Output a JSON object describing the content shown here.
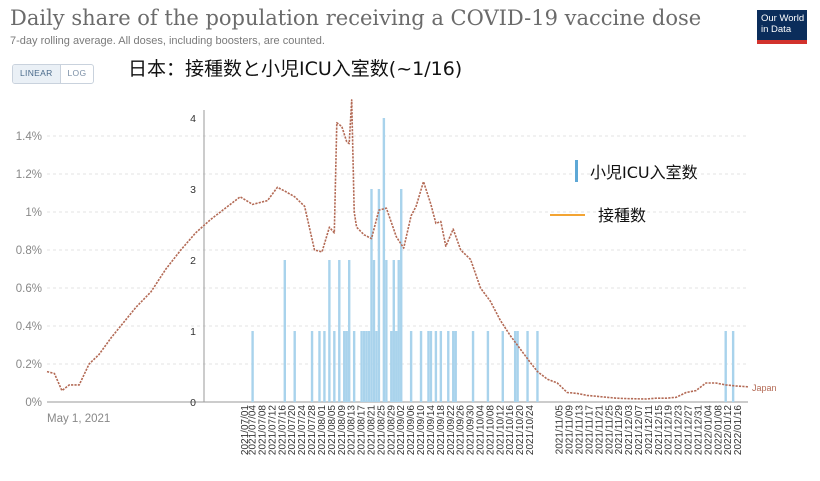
{
  "header": {
    "title": "Daily share of the population receiving a COVID-19 vaccine dose",
    "subtitle": "7-day rolling average. All doses, including boosters, are counted.",
    "logo_line1": "Our World",
    "logo_line2": "in Data"
  },
  "scale_toggle": {
    "linear_label": "LINEAR",
    "log_label": "LOG",
    "selected": "LINEAR"
  },
  "overlay_title": "日本：接種数と小児ICU入室数(~1/16)",
  "colors": {
    "line": "#b36a55",
    "bars": "#a9d3ec",
    "legend_bar": "#5ea8d6",
    "legend_line": "#f3a433"
  },
  "legend": {
    "bar_label": "小児ICU入室数",
    "line_label": "接種数"
  },
  "chart_data": [
    {
      "type": "line",
      "ylabel_ticks": [
        "0%",
        "0.2%",
        "0.4%",
        "0.6%",
        "0.8%",
        "1%",
        "1.2%",
        "1.4%"
      ],
      "ylim": [
        0,
        1.5
      ],
      "x_start_label": "May 1, 2021",
      "series": [
        {
          "name": "Japan",
          "x": [
            "2021-04-12",
            "2021-04-15",
            "2021-04-18",
            "2021-04-21",
            "2021-04-25",
            "2021-04-29",
            "2021-05-03",
            "2021-05-08",
            "2021-05-13",
            "2021-05-18",
            "2021-05-24",
            "2021-05-30",
            "2021-06-05",
            "2021-06-11",
            "2021-06-17",
            "2021-06-23",
            "2021-06-29",
            "2021-07-04",
            "2021-07-07",
            "2021-07-10",
            "2021-07-14",
            "2021-07-17",
            "2021-07-21",
            "2021-07-25",
            "2021-07-29",
            "2021-08-01",
            "2021-08-04",
            "2021-08-06",
            "2021-08-07",
            "2021-08-09",
            "2021-08-11",
            "2021-08-12",
            "2021-08-13",
            "2021-08-14",
            "2021-08-15",
            "2021-08-18",
            "2021-08-21",
            "2021-08-24",
            "2021-08-27",
            "2021-08-31",
            "2021-09-03",
            "2021-09-06",
            "2021-09-08",
            "2021-09-11",
            "2021-09-14",
            "2021-09-16",
            "2021-09-18",
            "2021-09-20",
            "2021-09-23",
            "2021-09-26",
            "2021-09-30",
            "2021-10-04",
            "2021-10-08",
            "2021-10-12",
            "2021-10-16",
            "2021-10-20",
            "2021-10-24",
            "2021-10-27",
            "2021-10-31",
            "2021-11-04",
            "2021-11-08",
            "2021-11-12",
            "2021-11-16",
            "2021-11-20",
            "2021-11-24",
            "2021-11-28",
            "2021-12-02",
            "2021-12-06",
            "2021-12-10",
            "2021-12-14",
            "2021-12-18",
            "2021-12-22",
            "2021-12-26",
            "2021-12-30",
            "2022-01-03",
            "2022-01-07",
            "2022-01-11",
            "2022-01-15",
            "2022-01-20"
          ],
          "y": [
            0.16,
            0.15,
            0.06,
            0.09,
            0.09,
            0.2,
            0.25,
            0.34,
            0.42,
            0.5,
            0.58,
            0.7,
            0.8,
            0.89,
            0.96,
            1.02,
            1.08,
            1.04,
            1.05,
            1.06,
            1.13,
            1.11,
            1.08,
            1.03,
            0.8,
            0.79,
            0.92,
            0.89,
            1.47,
            1.45,
            1.37,
            1.36,
            1.59,
            1.0,
            0.92,
            0.88,
            0.86,
            1.01,
            1.02,
            0.87,
            0.81,
            0.98,
            1.03,
            1.16,
            1.04,
            0.94,
            0.95,
            0.82,
            0.91,
            0.8,
            0.75,
            0.6,
            0.53,
            0.43,
            0.35,
            0.28,
            0.21,
            0.16,
            0.12,
            0.1,
            0.05,
            0.045,
            0.035,
            0.03,
            0.025,
            0.02,
            0.018,
            0.017,
            0.016,
            0.02,
            0.02,
            0.025,
            0.05,
            0.06,
            0.1,
            0.1,
            0.09,
            0.085,
            0.08
          ]
        }
      ],
      "end_label": "Japan"
    },
    {
      "type": "bar",
      "yticks": [
        0,
        1,
        2,
        3,
        4
      ],
      "ylim": [
        0,
        4.3
      ],
      "x_tick_labels": [
        "2021/07/01",
        "2021/07/04",
        "2021/07/08",
        "2021/07/12",
        "2021/07/16",
        "2021/07/20",
        "2021/07/24",
        "2021/07/28",
        "2021/08/01",
        "2021/08/05",
        "2021/08/09",
        "2021/08/13",
        "2021/08/17",
        "2021/08/21",
        "2021/08/25",
        "2021/08/29",
        "2021/09/02",
        "2021/09/06",
        "2021/09/10",
        "2021/09/14",
        "2021/09/18",
        "2021/09/22",
        "2021/09/26",
        "2021/09/30",
        "2021/10/04",
        "2021/10/08",
        "2021/10/12",
        "2021/10/16",
        "2021/10/20",
        "2021/10/24",
        "2021/11/05",
        "2021/11/09",
        "2021/11/13",
        "2021/11/17",
        "2021/11/21",
        "2021/11/25",
        "2021/11/29",
        "2021/12/03",
        "2021/12/07",
        "2021/12/11",
        "2021/12/15",
        "2021/12/19",
        "2021/12/23",
        "2021/12/27",
        "2021/12/31",
        "2022/01/04",
        "2022/01/08",
        "2022/01/12",
        "2022/01/16"
      ],
      "dates": [
        "2021-07-04",
        "2021-07-17",
        "2021-07-21",
        "2021-07-28",
        "2021-07-31",
        "2021-08-02",
        "2021-08-04",
        "2021-08-06",
        "2021-08-08",
        "2021-08-10",
        "2021-08-11",
        "2021-08-12",
        "2021-08-14",
        "2021-08-17",
        "2021-08-18",
        "2021-08-19",
        "2021-08-20",
        "2021-08-21",
        "2021-08-22",
        "2021-08-23",
        "2021-08-24",
        "2021-08-26",
        "2021-08-27",
        "2021-08-29",
        "2021-08-30",
        "2021-08-31",
        "2021-09-01",
        "2021-09-02",
        "2021-09-06",
        "2021-09-10",
        "2021-09-13",
        "2021-09-14",
        "2021-09-16",
        "2021-09-18",
        "2021-09-21",
        "2021-09-23",
        "2021-09-24",
        "2021-10-01",
        "2021-10-07",
        "2021-10-13",
        "2021-10-18",
        "2021-10-19",
        "2021-10-23",
        "2021-10-27",
        "2022-01-11",
        "2022-01-14"
      ],
      "values": [
        1,
        2,
        1,
        1,
        1,
        1,
        2,
        1,
        2,
        1,
        1,
        2,
        1,
        1,
        1,
        1,
        1,
        3,
        2,
        1,
        3,
        4,
        2,
        1,
        2,
        1,
        2,
        3,
        1,
        1,
        1,
        1,
        1,
        1,
        1,
        1,
        1,
        1,
        1,
        1,
        1,
        1,
        1,
        1,
        1,
        1
      ],
      "legend_name": "小児ICU入室数"
    }
  ]
}
